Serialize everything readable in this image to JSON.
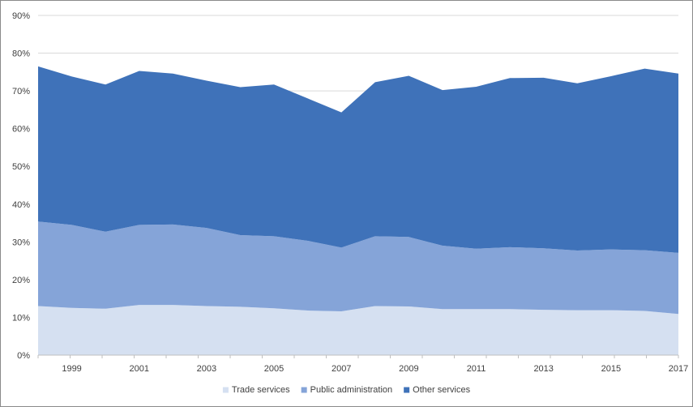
{
  "chart_data": {
    "type": "area",
    "stacked": true,
    "x": [
      1998,
      1999,
      2000,
      2001,
      2002,
      2003,
      2004,
      2005,
      2006,
      2007,
      2008,
      2009,
      2010,
      2011,
      2012,
      2013,
      2014,
      2015,
      2016,
      2017
    ],
    "x_tick_labels": [
      "1999",
      "2001",
      "2003",
      "2005",
      "2007",
      "2009",
      "2011",
      "2013",
      "2015",
      "2017"
    ],
    "y_tick_labels": [
      "0%",
      "10%",
      "20%",
      "30%",
      "40%",
      "50%",
      "60%",
      "70%",
      "80%",
      "90%"
    ],
    "ylim": [
      0,
      90
    ],
    "grid": true,
    "legend_position": "bottom",
    "series": [
      {
        "name": "Trade services",
        "color": "#d5e0f1",
        "values": [
          13.0,
          12.5,
          12.3,
          13.3,
          13.3,
          13.0,
          12.8,
          12.4,
          11.8,
          11.6,
          13.0,
          12.9,
          12.2,
          12.2,
          12.2,
          12.0,
          11.9,
          11.9,
          11.7,
          10.9
        ]
      },
      {
        "name": "Public administration",
        "color": "#85a4d8",
        "values": [
          22.4,
          22.0,
          20.4,
          21.2,
          21.3,
          20.7,
          19.0,
          19.1,
          18.5,
          16.9,
          18.5,
          18.4,
          16.8,
          16.0,
          16.4,
          16.3,
          15.8,
          16.1,
          16.1,
          16.2
        ]
      },
      {
        "name": "Other services",
        "color": "#3f72b9",
        "values": [
          41.1,
          39.3,
          39.0,
          40.8,
          40.0,
          39.0,
          39.2,
          40.2,
          37.7,
          35.8,
          40.8,
          42.7,
          41.2,
          42.9,
          44.8,
          45.2,
          44.3,
          45.9,
          48.1,
          47.5
        ]
      }
    ]
  }
}
